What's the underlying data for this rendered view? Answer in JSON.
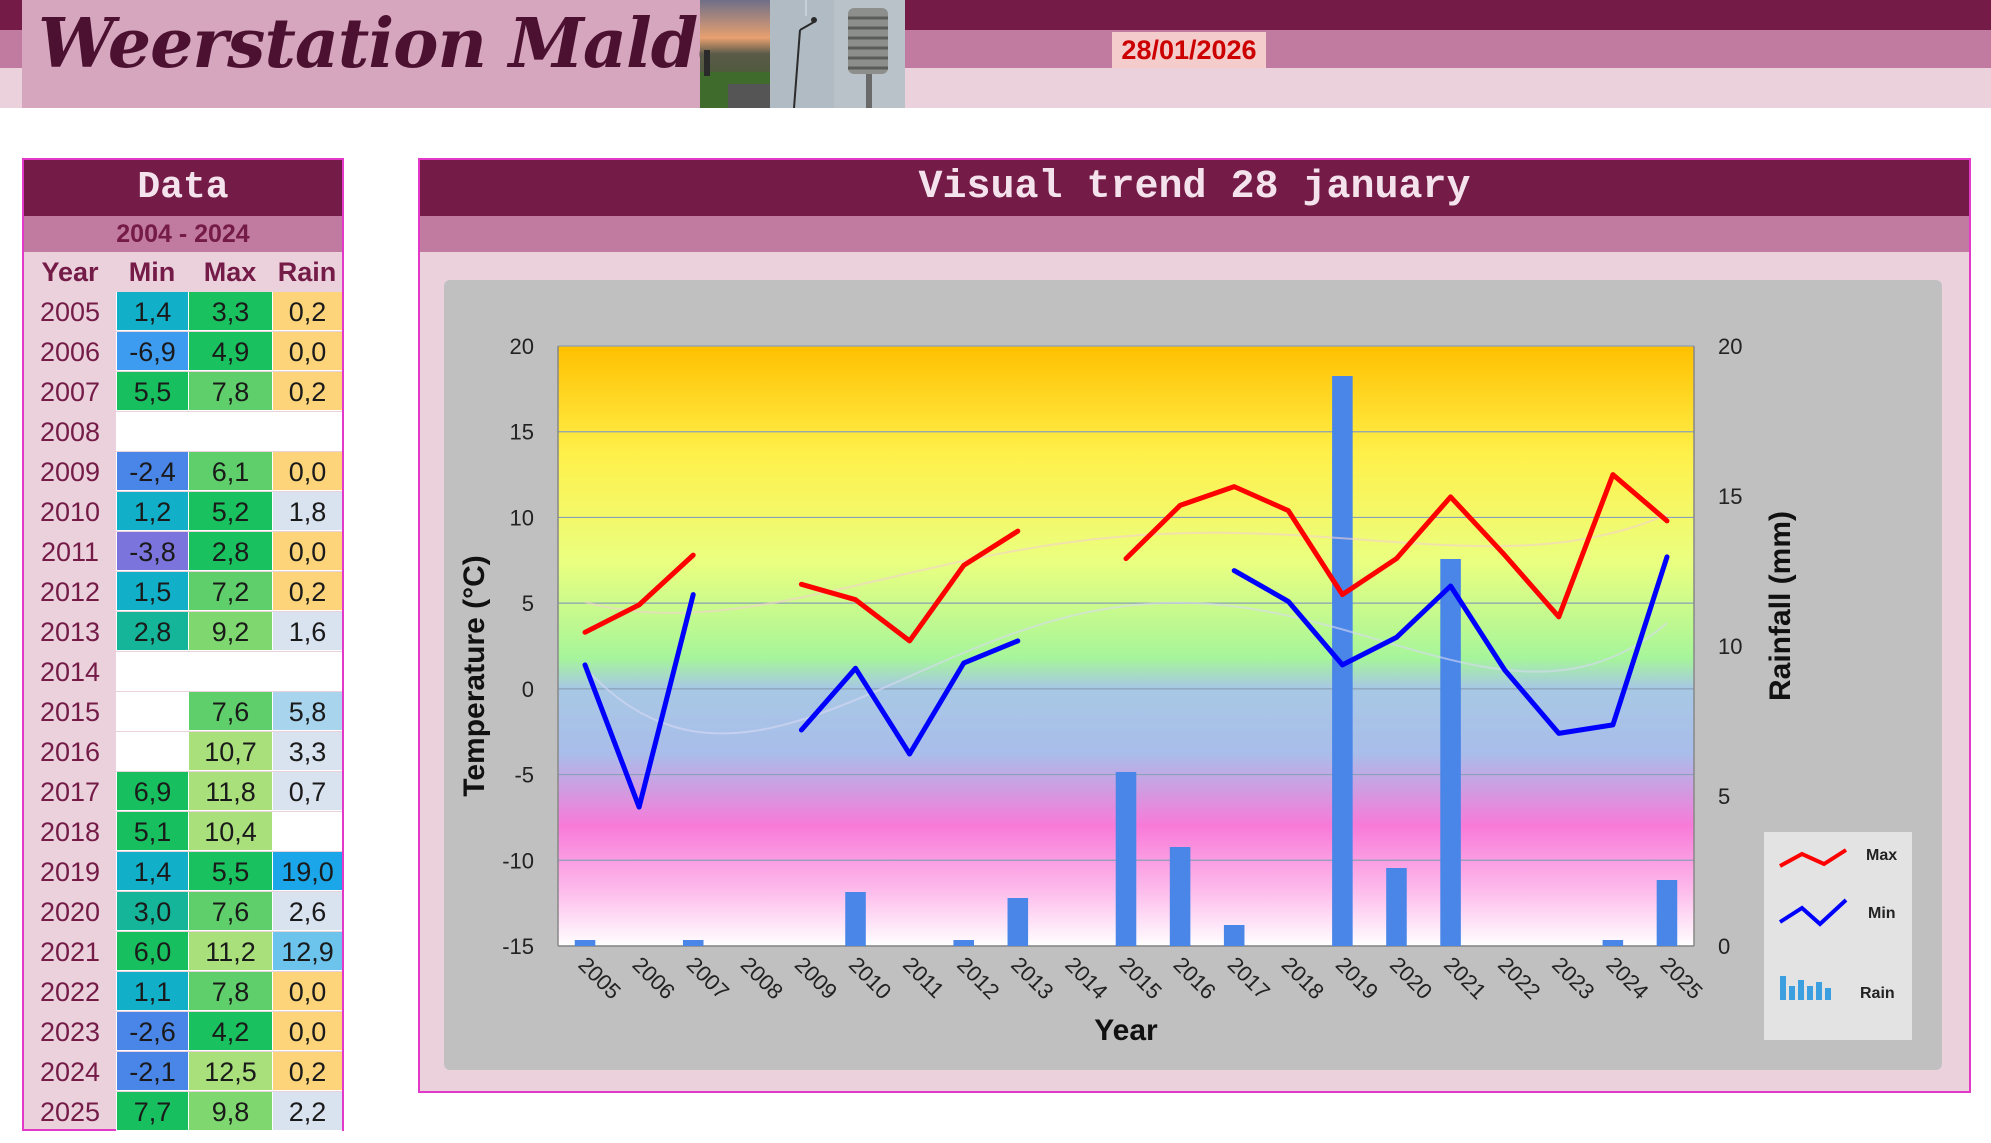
{
  "header": {
    "site_title": "Weerstation Malderen",
    "date": "28/01/2026"
  },
  "table": {
    "title": "Data",
    "period": "2004 - 2024",
    "columns": [
      "Year",
      "Min",
      "Max",
      "Rain"
    ],
    "rows": [
      {
        "year": "2005",
        "min": "1,4",
        "max": "3,3",
        "rain": "0,2"
      },
      {
        "year": "2006",
        "min": "-6,9",
        "max": "4,9",
        "rain": "0,0"
      },
      {
        "year": "2007",
        "min": "5,5",
        "max": "7,8",
        "rain": "0,2"
      },
      {
        "year": "2008",
        "min": "",
        "max": "",
        "rain": ""
      },
      {
        "year": "2009",
        "min": "-2,4",
        "max": "6,1",
        "rain": "0,0"
      },
      {
        "year": "2010",
        "min": "1,2",
        "max": "5,2",
        "rain": "1,8"
      },
      {
        "year": "2011",
        "min": "-3,8",
        "max": "2,8",
        "rain": "0,0"
      },
      {
        "year": "2012",
        "min": "1,5",
        "max": "7,2",
        "rain": "0,2"
      },
      {
        "year": "2013",
        "min": "2,8",
        "max": "9,2",
        "rain": "1,6"
      },
      {
        "year": "2014",
        "min": "",
        "max": "",
        "rain": ""
      },
      {
        "year": "2015",
        "min": "",
        "max": "7,6",
        "rain": "5,8"
      },
      {
        "year": "2016",
        "min": "",
        "max": "10,7",
        "rain": "3,3"
      },
      {
        "year": "2017",
        "min": "6,9",
        "max": "11,8",
        "rain": "0,7"
      },
      {
        "year": "2018",
        "min": "5,1",
        "max": "10,4",
        "rain": ""
      },
      {
        "year": "2019",
        "min": "1,4",
        "max": "5,5",
        "rain": "19,0"
      },
      {
        "year": "2020",
        "min": "3,0",
        "max": "7,6",
        "rain": "2,6"
      },
      {
        "year": "2021",
        "min": "6,0",
        "max": "11,2",
        "rain": "12,9"
      },
      {
        "year": "2022",
        "min": "1,1",
        "max": "7,8",
        "rain": "0,0"
      },
      {
        "year": "2023",
        "min": "-2,6",
        "max": "4,2",
        "rain": "0,0"
      },
      {
        "year": "2024",
        "min": "-2,1",
        "max": "12,5",
        "rain": "0,2"
      },
      {
        "year": "2025",
        "min": "7,7",
        "max": "9,8",
        "rain": "2,2"
      }
    ]
  },
  "chart_panel": {
    "title": "Visual  trend 28 january"
  },
  "chart_data": {
    "type": "line",
    "title": "Visual  trend 28 january",
    "xlabel": "Year",
    "ylabel": "Temperature (°C)",
    "y2label": "Rainfall (mm)",
    "ylim": [
      -15,
      20
    ],
    "y2lim": [
      0,
      20
    ],
    "yticks": [
      -15,
      -10,
      -5,
      0,
      5,
      10,
      15,
      20
    ],
    "y2ticks": [
      0,
      5,
      10,
      15,
      20
    ],
    "categories": [
      "2005",
      "2006",
      "2007",
      "2008",
      "2009",
      "2010",
      "2011",
      "2012",
      "2013",
      "2014",
      "2015",
      "2016",
      "2017",
      "2018",
      "2019",
      "2020",
      "2021",
      "2022",
      "2023",
      "2024",
      "2025"
    ],
    "series": [
      {
        "name": "Max",
        "type": "line",
        "axis": "left",
        "color": "#ff0000",
        "values": [
          3.3,
          4.9,
          7.8,
          null,
          6.1,
          5.2,
          2.8,
          7.2,
          9.2,
          null,
          7.6,
          10.7,
          11.8,
          10.4,
          5.5,
          7.6,
          11.2,
          7.8,
          4.2,
          12.5,
          9.8
        ]
      },
      {
        "name": "Min",
        "type": "line",
        "axis": "left",
        "color": "#0000ff",
        "values": [
          1.4,
          -6.9,
          5.5,
          null,
          -2.4,
          1.2,
          -3.8,
          1.5,
          2.8,
          null,
          null,
          null,
          6.9,
          5.1,
          1.4,
          3.0,
          6.0,
          1.1,
          -2.6,
          -2.1,
          7.7
        ]
      },
      {
        "name": "Rain",
        "type": "bar",
        "axis": "right",
        "color": "#4a86e8",
        "values": [
          0.2,
          0.0,
          0.2,
          null,
          0.0,
          1.8,
          0.0,
          0.2,
          1.6,
          null,
          5.8,
          3.3,
          0.7,
          null,
          19.0,
          2.6,
          12.9,
          0.0,
          0.0,
          0.2,
          2.2
        ]
      }
    ],
    "legend": [
      "Max",
      "Min",
      "Rain"
    ],
    "legend_position": "right",
    "grid": true
  },
  "colors": {
    "header_dark": "#741b47",
    "header_mid": "#c27ba0",
    "header_light": "#ead1dc",
    "date_text": "#cc0000"
  }
}
